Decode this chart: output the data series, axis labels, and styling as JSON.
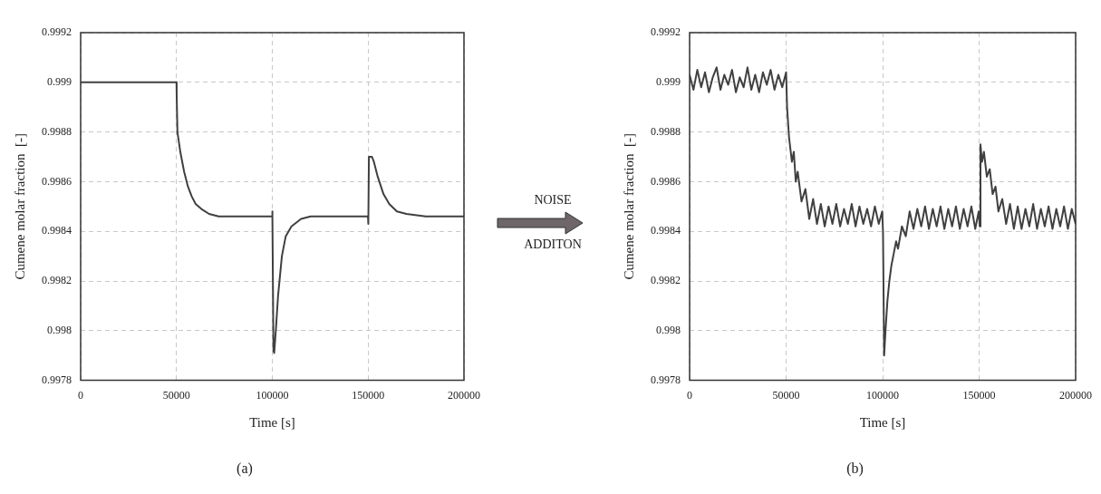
{
  "chart_data": [
    {
      "type": "line",
      "xlabel": "Time [s]",
      "ylabel": "Cumene molar fraction  [-]",
      "annotations": [
        "(a)"
      ],
      "grid": true,
      "marker": "none",
      "xlim": [
        0,
        200000
      ],
      "xticks": [
        0,
        50000,
        100000,
        150000,
        200000
      ],
      "ylim": [
        0.9978,
        0.9992
      ],
      "yticks": [
        0.9978,
        0.998,
        0.9982,
        0.9984,
        0.9986,
        0.9988,
        0.999,
        0.9992
      ],
      "series": [
        {
          "color": "#404040",
          "x": [
            0,
            50000,
            50100,
            50500,
            52000,
            54000,
            56000,
            58000,
            60000,
            63000,
            67000,
            72000,
            80000,
            99900,
            100000,
            100100,
            100600,
            101000,
            102000,
            103000,
            105000,
            107000,
            110000,
            115000,
            120000,
            149900,
            150000,
            150200,
            150400,
            152000,
            153000,
            155000,
            158000,
            161000,
            165000,
            170000,
            180000,
            200000
          ],
          "values": [
            0.999,
            0.999,
            0.99895,
            0.9988,
            0.99872,
            0.99864,
            0.99858,
            0.99854,
            0.99851,
            0.99849,
            0.99847,
            0.99846,
            0.99846,
            0.99846,
            0.99848,
            0.99846,
            0.99792,
            0.99791,
            0.99802,
            0.99814,
            0.9983,
            0.99838,
            0.99842,
            0.99845,
            0.99846,
            0.99846,
            0.99843,
            0.99843,
            0.9987,
            0.9987,
            0.99868,
            0.99862,
            0.99855,
            0.99851,
            0.99848,
            0.99847,
            0.99846,
            0.99846
          ]
        }
      ]
    },
    {
      "type": "other",
      "annotations": [
        "NOISE",
        "ADDITON"
      ]
    },
    {
      "type": "line",
      "xlabel": "Time [s]",
      "ylabel": "Cumene molar fraction  [-]",
      "annotations": [
        "(b)"
      ],
      "grid": true,
      "marker": "none",
      "xlim": [
        0,
        200000
      ],
      "xticks": [
        0,
        50000,
        100000,
        150000,
        200000
      ],
      "ylim": [
        0.9978,
        0.9992
      ],
      "yticks": [
        0.9978,
        0.998,
        0.9982,
        0.9984,
        0.9986,
        0.9988,
        0.999,
        0.9992
      ],
      "series": [
        {
          "color": "#404040",
          "x": [
            0,
            2000,
            4000,
            6000,
            8000,
            10000,
            12000,
            14000,
            16000,
            18000,
            20000,
            22000,
            24000,
            26000,
            28000,
            30000,
            32000,
            34000,
            36000,
            38000,
            40000,
            42000,
            44000,
            46000,
            48000,
            50000,
            50500,
            51500,
            53000,
            54000,
            55000,
            56000,
            58000,
            60000,
            62000,
            64000,
            66000,
            68000,
            70000,
            72000,
            74000,
            76000,
            78000,
            80000,
            82000,
            84000,
            86000,
            88000,
            90000,
            92000,
            94000,
            96000,
            98000,
            99800,
            100200,
            100800,
            101500,
            102500,
            103500,
            104500,
            105500,
            107000,
            108000,
            110000,
            112000,
            114000,
            116000,
            118000,
            120000,
            122000,
            124000,
            126000,
            128000,
            130000,
            132000,
            134000,
            136000,
            138000,
            140000,
            142000,
            144000,
            146000,
            148000,
            149800,
            150300,
            150700,
            151500,
            152500,
            154000,
            155500,
            157000,
            158500,
            160000,
            162000,
            164000,
            166000,
            168000,
            170000,
            172000,
            174000,
            176000,
            178000,
            180000,
            182000,
            184000,
            186000,
            188000,
            190000,
            192000,
            194000,
            196000,
            198000,
            200000
          ],
          "values": [
            0.99903,
            0.99897,
            0.99905,
            0.99898,
            0.99904,
            0.99896,
            0.99902,
            0.99906,
            0.99897,
            0.99903,
            0.99899,
            0.99905,
            0.99896,
            0.99902,
            0.99898,
            0.99906,
            0.99897,
            0.99903,
            0.99896,
            0.99904,
            0.99899,
            0.99905,
            0.99897,
            0.99903,
            0.99898,
            0.99904,
            0.9989,
            0.99878,
            0.99868,
            0.99872,
            0.9986,
            0.99864,
            0.99852,
            0.99857,
            0.99845,
            0.99853,
            0.99843,
            0.99851,
            0.99842,
            0.9985,
            0.99843,
            0.99851,
            0.99842,
            0.99849,
            0.99843,
            0.99851,
            0.99842,
            0.9985,
            0.99843,
            0.99849,
            0.99842,
            0.9985,
            0.99843,
            0.99848,
            0.9984,
            0.9979,
            0.998,
            0.99812,
            0.9982,
            0.99826,
            0.9983,
            0.99836,
            0.99833,
            0.99842,
            0.99838,
            0.99848,
            0.99841,
            0.99849,
            0.99842,
            0.9985,
            0.99841,
            0.99849,
            0.99842,
            0.9985,
            0.99841,
            0.99849,
            0.99842,
            0.9985,
            0.99841,
            0.99849,
            0.99842,
            0.9985,
            0.99841,
            0.99848,
            0.99842,
            0.99875,
            0.99868,
            0.99872,
            0.99862,
            0.99865,
            0.99855,
            0.99858,
            0.99848,
            0.99853,
            0.99843,
            0.99851,
            0.99841,
            0.9985,
            0.99841,
            0.99849,
            0.99842,
            0.99851,
            0.99841,
            0.99849,
            0.99842,
            0.9985,
            0.99841,
            0.99849,
            0.99842,
            0.9985,
            0.99841,
            0.99849,
            0.99843
          ]
        }
      ]
    }
  ]
}
